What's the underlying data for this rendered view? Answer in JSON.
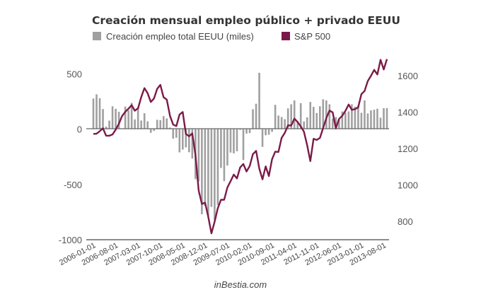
{
  "chart_data": {
    "type": "bar+line",
    "title": "Creación mensual empleo público + privado EEUU",
    "credit": "inBestia.com",
    "legend": {
      "placement": "top-left",
      "entries": [
        "Creación empleo total EEUU (miles)",
        "S&P 500"
      ]
    },
    "colors": {
      "bars": "#a0a0a0",
      "line": "#7b1a48",
      "axis": "#666666"
    },
    "x_start": "2006-01",
    "x_tick_labels": [
      "2006-01-01",
      "2006-08-01",
      "2007-03-01",
      "2007-10-01",
      "2008-05-01",
      "2008-12-01",
      "2009-07-01",
      "2010-02-01",
      "2010-09-01",
      "2011-04-01",
      "2011-11-01",
      "2012-06-01",
      "2013-01-01",
      "2013-08-01"
    ],
    "left_axis": {
      "ticks": [
        "500",
        "0",
        "-500",
        "-1000"
      ],
      "tick_values": [
        500,
        0,
        -500,
        -1000
      ],
      "ylim": [
        -1000,
        650
      ]
    },
    "right_axis": {
      "ticks": [
        "1600",
        "1400",
        "1200",
        "1000",
        "800"
      ],
      "tick_values": [
        1600,
        1400,
        1200,
        1000,
        800
      ],
      "ylim": [
        700,
        1700
      ]
    },
    "series": [
      {
        "name": "Creación empleo total EEUU (miles)",
        "type": "bar",
        "axis": "left",
        "values": [
          277,
          315,
          280,
          182,
          23,
          77,
          207,
          184,
          157,
          4,
          204,
          171,
          238,
          88,
          188,
          78,
          144,
          71,
          -33,
          -16,
          85,
          82,
          118,
          97,
          15,
          -86,
          -78,
          -210,
          -185,
          -165,
          -209,
          -266,
          -452,
          -473,
          -769,
          -695,
          -791,
          -703,
          -823,
          -686,
          -351,
          -470,
          -329,
          -212,
          -219,
          -200,
          -7,
          -279,
          -40,
          -35,
          180,
          230,
          510,
          -160,
          -55,
          -50,
          -25,
          220,
          123,
          110,
          90,
          188,
          225,
          260,
          73,
          235,
          70,
          107,
          246,
          202,
          146,
          207,
          270,
          260,
          225,
          96,
          110,
          88,
          160,
          150,
          161,
          225,
          203,
          214,
          148,
          260,
          142,
          170,
          176,
          185,
          104,
          190,
          190
        ]
      },
      {
        "name": "S&P 500",
        "type": "line",
        "axis": "right",
        "values": [
          1280,
          1281,
          1295,
          1311,
          1270,
          1270,
          1277,
          1304,
          1336,
          1378,
          1401,
          1418,
          1438,
          1407,
          1421,
          1482,
          1531,
          1503,
          1455,
          1474,
          1527,
          1549,
          1481,
          1468,
          1379,
          1331,
          1323,
          1386,
          1400,
          1280,
          1267,
          1283,
          1165,
          969,
          896,
          903,
          826,
          735,
          798,
          873,
          919,
          919,
          987,
          1021,
          1057,
          1036,
          1096,
          1115,
          1074,
          1104,
          1169,
          1187,
          1089,
          1031,
          1102,
          1049,
          1141,
          1183,
          1181,
          1258,
          1286,
          1327,
          1326,
          1364,
          1345,
          1321,
          1292,
          1219,
          1131,
          1253,
          1247,
          1258,
          1312,
          1366,
          1408,
          1398,
          1310,
          1362,
          1379,
          1407,
          1441,
          1412,
          1416,
          1426,
          1498,
          1515,
          1569,
          1598,
          1631,
          1606,
          1686,
          1633,
          1690
        ]
      }
    ]
  }
}
